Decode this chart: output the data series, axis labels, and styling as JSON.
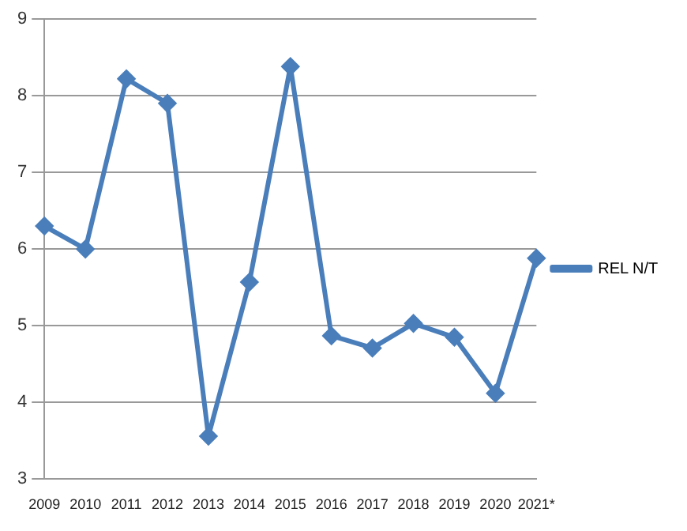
{
  "chart_data": {
    "type": "line",
    "categories": [
      "2009",
      "2010",
      "2011",
      "2012",
      "2013",
      "2014",
      "2015",
      "2016",
      "2017",
      "2018",
      "2019",
      "2020",
      "2021*"
    ],
    "series": [
      {
        "name": "REL N/T",
        "color": "#4a7ebb",
        "values": [
          6.3,
          6.0,
          8.22,
          7.9,
          3.56,
          5.57,
          8.38,
          4.87,
          4.71,
          5.03,
          4.85,
          4.12,
          5.88
        ]
      }
    ],
    "ylim": [
      3,
      9
    ],
    "yticks": [
      3,
      4,
      5,
      6,
      7,
      8,
      9
    ],
    "grid": "y",
    "legend": "right",
    "marker": "diamond",
    "line_style": "solid"
  }
}
